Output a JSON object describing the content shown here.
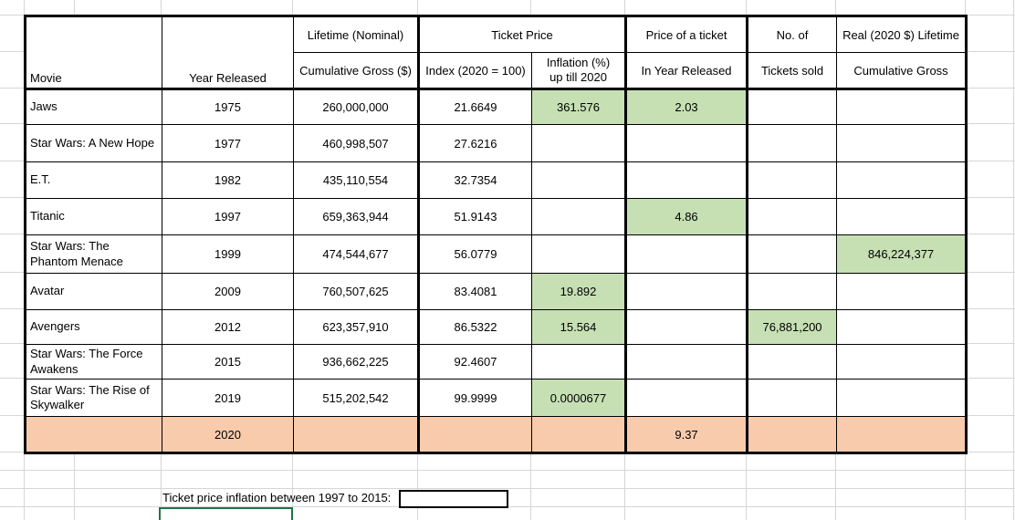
{
  "table": {
    "headers": {
      "movie": "Movie",
      "year_released": "Year Released",
      "lifetime_nominal": "Lifetime (Nominal)",
      "cumulative_gross": "Cumulative Gross ($)",
      "ticket_price": "Ticket Price",
      "index_2020": "Index (2020 = 100)",
      "inflation_pct": "Inflation (%)\nup till 2020",
      "price_of_ticket": "Price of a ticket",
      "in_year_released": "In Year Released",
      "no_of": "No. of",
      "tickets_sold": "Tickets sold",
      "real_lifetime": "Real (2020 $) Lifetime",
      "cumulative_gross_real": "Cumulative Gross"
    },
    "rows": [
      {
        "movie": "Jaws",
        "year": "1975",
        "gross": "260,000,000",
        "index": "21.6649",
        "inflation": "361.576",
        "price": "2.03",
        "tickets": "",
        "real": "",
        "highlight": [
          "inflation",
          "price"
        ]
      },
      {
        "movie": "Star Wars: A New Hope",
        "year": "1977",
        "gross": "460,998,507",
        "index": "27.6216",
        "inflation": "",
        "price": "",
        "tickets": "",
        "real": "",
        "highlight": []
      },
      {
        "movie": "E.T.",
        "year": "1982",
        "gross": "435,110,554",
        "index": "32.7354",
        "inflation": "",
        "price": "",
        "tickets": "",
        "real": "",
        "highlight": []
      },
      {
        "movie": "Titanic",
        "year": "1997",
        "gross": "659,363,944",
        "index": "51.9143",
        "inflation": "",
        "price": "4.86",
        "tickets": "",
        "real": "",
        "highlight": [
          "price"
        ]
      },
      {
        "movie": "Star Wars: The\nPhantom Menace",
        "year": "1999",
        "gross": "474,544,677",
        "index": "56.0779",
        "inflation": "",
        "price": "",
        "tickets": "",
        "real": "846,224,377",
        "highlight": [
          "real"
        ]
      },
      {
        "movie": "Avatar",
        "year": "2009",
        "gross": "760,507,625",
        "index": "83.4081",
        "inflation": "19.892",
        "price": "",
        "tickets": "",
        "real": "",
        "highlight": [
          "inflation"
        ]
      },
      {
        "movie": "Avengers",
        "year": "2012",
        "gross": "623,357,910",
        "index": "86.5322",
        "inflation": "15.564",
        "price": "",
        "tickets": "76,881,200",
        "real": "",
        "highlight": [
          "inflation",
          "tickets"
        ]
      },
      {
        "movie": "Star Wars: The Force\nAwakens",
        "year": "2015",
        "gross": "936,662,225",
        "index": "92.4607",
        "inflation": "",
        "price": "",
        "tickets": "",
        "real": "",
        "highlight": []
      },
      {
        "movie": "Star Wars: The Rise of\nSkywalker",
        "year": "2019",
        "gross": "515,202,542",
        "index": "99.9999",
        "inflation": "0.0000677",
        "price": "",
        "tickets": "",
        "real": "",
        "highlight": [
          "inflation"
        ]
      }
    ],
    "summary_row": {
      "movie": "",
      "year": "2020",
      "gross": "",
      "index": "",
      "inflation": "",
      "price": "9.37",
      "tickets": "",
      "real": ""
    }
  },
  "footer": {
    "prompt": "Ticket price inflation between 1997 to 2015:",
    "answer_value": ""
  },
  "colors": {
    "highlight_green": "#c6e0b4",
    "summary_orange": "#f8cbad",
    "selection_border_green": "#217346",
    "gridline_gray": "#d6d6d6",
    "table_border_black": "#000000"
  }
}
